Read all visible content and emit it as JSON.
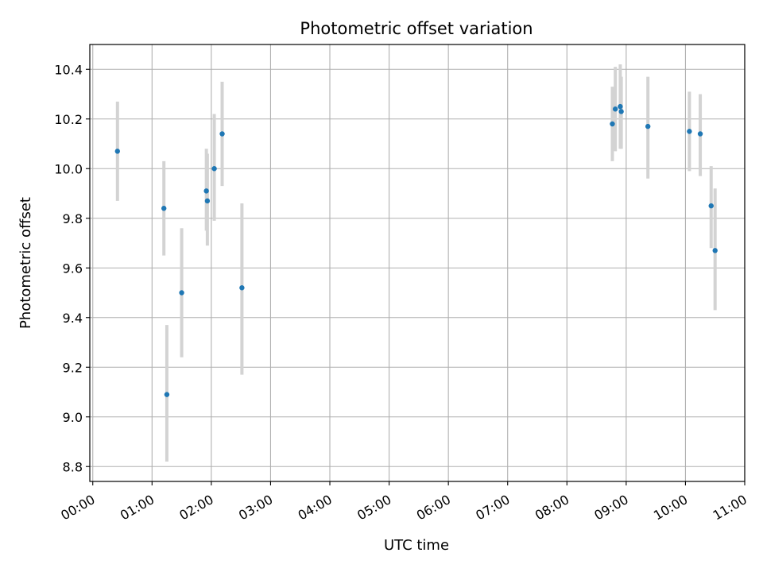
{
  "chart_data": {
    "type": "scatter",
    "title": "Photometric offset variation",
    "xlabel": "UTC time",
    "ylabel": "Photometric offset",
    "x_tick_labels": [
      "00:00",
      "01:00",
      "02:00",
      "03:00",
      "04:00",
      "05:00",
      "06:00",
      "07:00",
      "08:00",
      "09:00",
      "10:00",
      "11:00"
    ],
    "y_ticks": [
      8.8,
      9.0,
      9.2,
      9.4,
      9.6,
      9.8,
      10.0,
      10.2,
      10.4
    ],
    "y_tick_labels": [
      "8.8",
      "9.0",
      "9.2",
      "9.4",
      "9.6",
      "9.8",
      "10.0",
      "10.2",
      "10.4"
    ],
    "xlim": [
      "23:57",
      "11:00"
    ],
    "ylim": [
      8.74,
      10.5
    ],
    "grid": true,
    "colors": {
      "points": "#1f77b4",
      "error_bars": "#d3d3d3",
      "grid": "#b0b0b0"
    },
    "points": [
      {
        "x": "00:25",
        "y": 10.07,
        "y_low": 9.87,
        "y_high": 10.27
      },
      {
        "x": "01:12",
        "y": 9.84,
        "y_low": 9.65,
        "y_high": 10.03
      },
      {
        "x": "01:15",
        "y": 9.09,
        "y_low": 8.82,
        "y_high": 9.37
      },
      {
        "x": "01:30",
        "y": 9.5,
        "y_low": 9.24,
        "y_high": 9.76
      },
      {
        "x": "01:55",
        "y": 9.91,
        "y_low": 9.75,
        "y_high": 10.08
      },
      {
        "x": "01:56",
        "y": 9.87,
        "y_low": 9.69,
        "y_high": 10.06
      },
      {
        "x": "02:03",
        "y": 10.0,
        "y_low": 9.79,
        "y_high": 10.22
      },
      {
        "x": "02:11",
        "y": 10.14,
        "y_low": 9.93,
        "y_high": 10.35
      },
      {
        "x": "02:31",
        "y": 9.52,
        "y_low": 9.17,
        "y_high": 9.86
      },
      {
        "x": "08:46",
        "y": 10.18,
        "y_low": 10.03,
        "y_high": 10.33
      },
      {
        "x": "08:49",
        "y": 10.24,
        "y_low": 10.07,
        "y_high": 10.41
      },
      {
        "x": "08:54",
        "y": 10.25,
        "y_low": 10.08,
        "y_high": 10.42
      },
      {
        "x": "08:55",
        "y": 10.23,
        "y_low": 10.08,
        "y_high": 10.37
      },
      {
        "x": "09:22",
        "y": 10.17,
        "y_low": 9.96,
        "y_high": 10.37
      },
      {
        "x": "10:04",
        "y": 10.15,
        "y_low": 9.99,
        "y_high": 10.31
      },
      {
        "x": "10:15",
        "y": 10.14,
        "y_low": 9.97,
        "y_high": 10.3
      },
      {
        "x": "10:26",
        "y": 9.85,
        "y_low": 9.68,
        "y_high": 10.01
      },
      {
        "x": "10:30",
        "y": 9.67,
        "y_low": 9.43,
        "y_high": 9.92
      }
    ]
  }
}
